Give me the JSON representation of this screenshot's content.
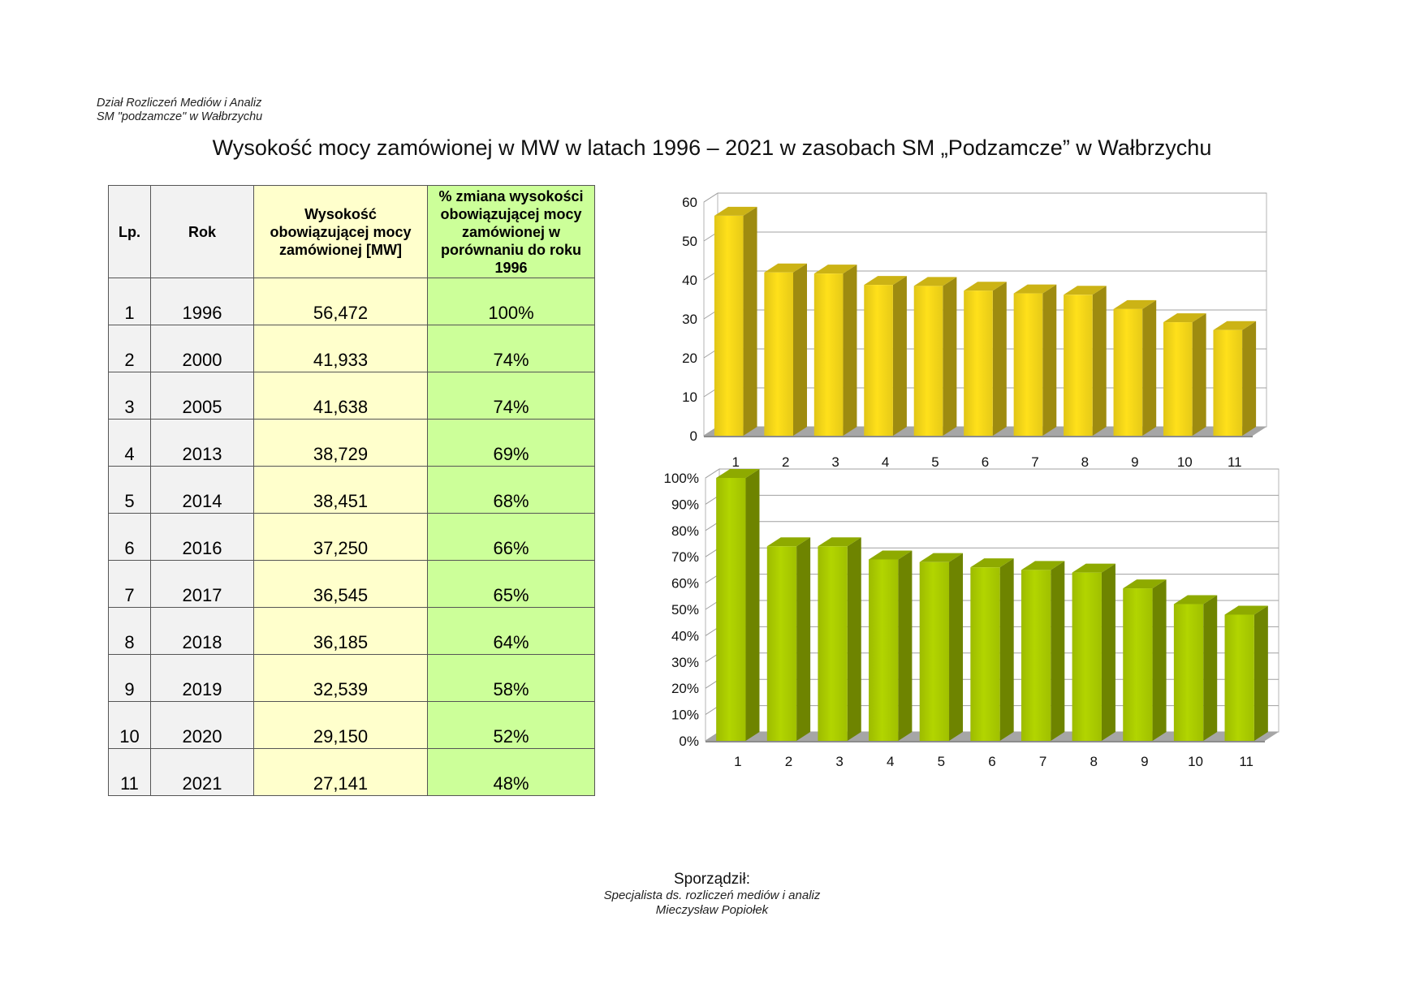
{
  "header": {
    "line1": "Dział Rozliczeń Mediów i Analiz",
    "line2": "SM \"podzamcze\" w Wałbrzychu"
  },
  "title": "Wysokość mocy zamówionej w MW w latach 1996 – 2021  w zasobach SM „Podzamcze” w Wałbrzychu",
  "table": {
    "headers": {
      "lp": "Lp.",
      "rok": "Rok",
      "moc": "Wysokość obowiązującej mocy zamówionej  [MW]",
      "zmiana": "% zmiana wysokości obowiązującej mocy zamówionej  w porównaniu do roku 1996"
    },
    "rows": [
      {
        "lp": "1",
        "rok": "1996",
        "moc": "56,472",
        "zmiana": "100%"
      },
      {
        "lp": "2",
        "rok": "2000",
        "moc": "41,933",
        "zmiana": "74%"
      },
      {
        "lp": "3",
        "rok": "2005",
        "moc": "41,638",
        "zmiana": "74%"
      },
      {
        "lp": "4",
        "rok": "2013",
        "moc": "38,729",
        "zmiana": "69%"
      },
      {
        "lp": "5",
        "rok": "2014",
        "moc": "38,451",
        "zmiana": "68%"
      },
      {
        "lp": "6",
        "rok": "2016",
        "moc": "37,250",
        "zmiana": "66%"
      },
      {
        "lp": "7",
        "rok": "2017",
        "moc": "36,545",
        "zmiana": "65%"
      },
      {
        "lp": "8",
        "rok": "2018",
        "moc": "36,185",
        "zmiana": "64%"
      },
      {
        "lp": "9",
        "rok": "2019",
        "moc": "32,539",
        "zmiana": "58%"
      },
      {
        "lp": "10",
        "rok": "2020",
        "moc": "29,150",
        "zmiana": "52%"
      },
      {
        "lp": "11",
        "rok": "2021",
        "moc": "27,141",
        "zmiana": "48%"
      }
    ]
  },
  "chart_data": [
    {
      "type": "bar",
      "categories": [
        "1",
        "2",
        "3",
        "4",
        "5",
        "6",
        "7",
        "8",
        "9",
        "10",
        "11"
      ],
      "values": [
        56.472,
        41.933,
        41.638,
        38.729,
        38.451,
        37.25,
        36.545,
        36.185,
        32.539,
        29.15,
        27.141
      ],
      "ylim": [
        0,
        60
      ],
      "yticks": [
        "0",
        "10",
        "20",
        "30",
        "40",
        "50",
        "60"
      ],
      "grid": true,
      "color": "#ffe01a"
    },
    {
      "type": "bar",
      "categories": [
        "1",
        "2",
        "3",
        "4",
        "5",
        "6",
        "7",
        "8",
        "9",
        "10",
        "11"
      ],
      "values": [
        100,
        74,
        74,
        69,
        68,
        66,
        65,
        64,
        58,
        52,
        48
      ],
      "ylim": [
        0,
        100
      ],
      "yticks": [
        "0%",
        "10%",
        "20%",
        "30%",
        "40%",
        "50%",
        "60%",
        "70%",
        "80%",
        "90%",
        "100%"
      ],
      "grid": true,
      "color": "#b2d500"
    }
  ],
  "footer": {
    "label": "Sporządził:",
    "role": "Specjalista ds. rozliczeń mediów i analiz",
    "name": "Mieczysław Popiołek"
  }
}
